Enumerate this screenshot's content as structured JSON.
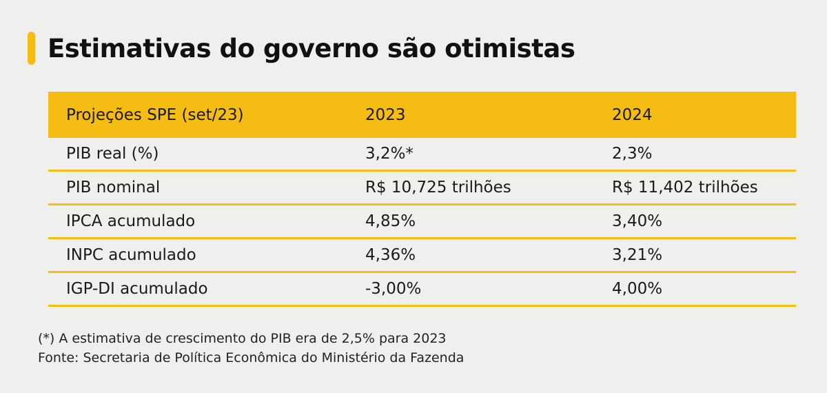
{
  "title": "Estimativas do governo são otimistas",
  "table": {
    "headers": [
      "Projeções SPE (set/23)",
      "2023",
      "2024"
    ],
    "rows": [
      [
        "PIB real (%)",
        "3,2%*",
        "2,3%"
      ],
      [
        "PIB nominal",
        "R$ 10,725 trilhões",
        "R$ 11,402 trilhões"
      ],
      [
        "IPCA acumulado",
        "4,85%",
        "3,40%"
      ],
      [
        "INPC acumulado",
        "4,36%",
        "3,21%"
      ],
      [
        "IGP-DI acumulado",
        "-3,00%",
        "4,00%"
      ]
    ]
  },
  "footer": {
    "note": "(*) A estimativa de crescimento do PIB era de 2,5% para 2023",
    "source": "Fonte: Secretaria de Política Econômica do Ministério da Fazenda"
  },
  "colors": {
    "accent": "#f5bc14",
    "background": "#efefed"
  }
}
